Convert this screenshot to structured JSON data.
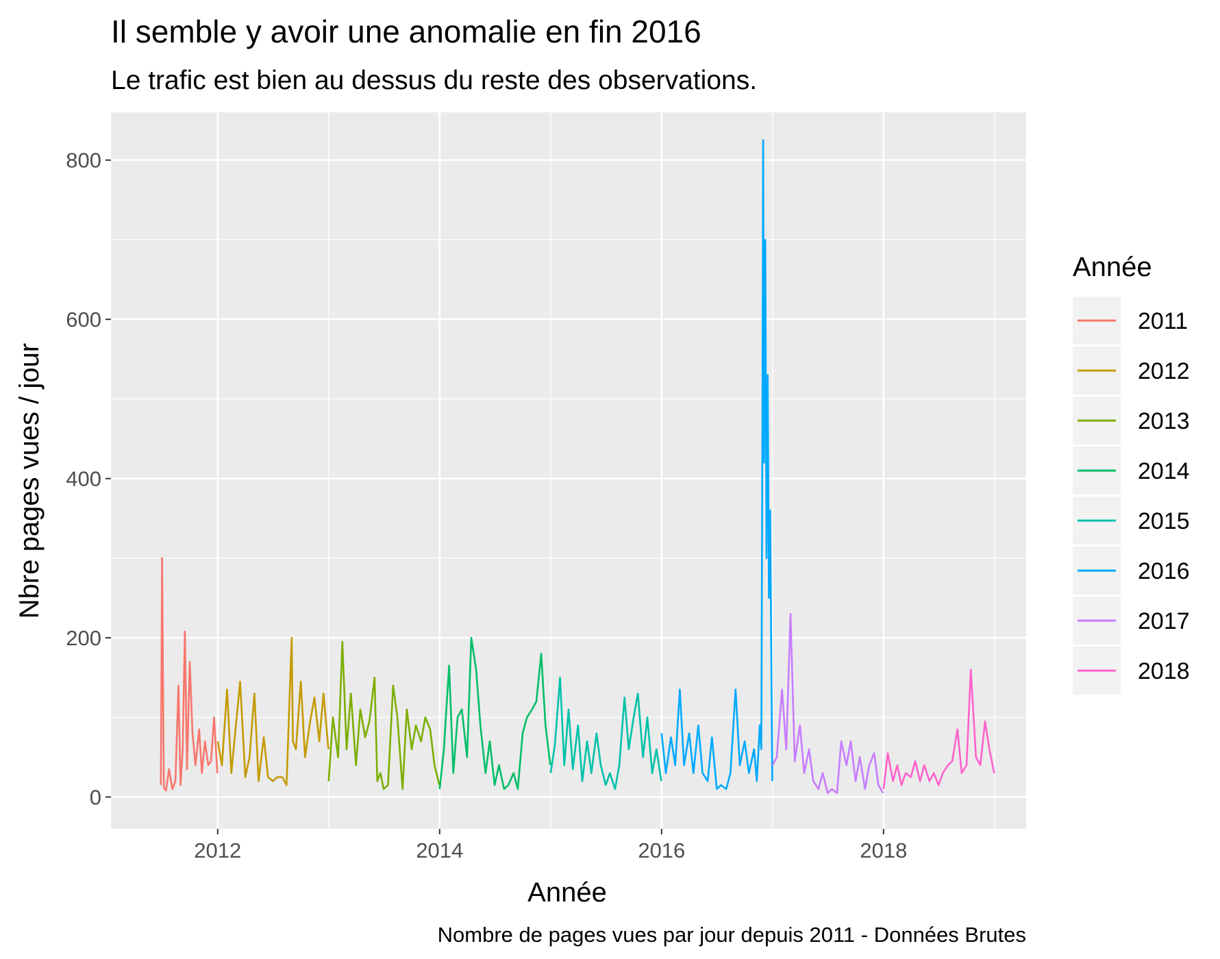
{
  "chart_data": {
    "type": "line",
    "title": "Il semble y avoir une anomalie en fin 2016",
    "subtitle": "Le trafic est bien au dessus du reste des observations.",
    "caption": "Nombre de pages vues par jour depuis 2011 - Données Brutes",
    "xlabel": "Année",
    "ylabel": "Nbre pages vues / jour",
    "xlim": [
      "2011-01-15",
      "2019-04-15"
    ],
    "ylim": [
      -40,
      860
    ],
    "x_ticks": [
      2012,
      2014,
      2016,
      2018
    ],
    "x_tick_labels": [
      "2012",
      "2014",
      "2016",
      "2018"
    ],
    "y_ticks": [
      0,
      200,
      400,
      600,
      800
    ],
    "y_tick_labels": [
      "0",
      "200",
      "400",
      "600",
      "800"
    ],
    "grid": true,
    "panel_background": "#EBEBEB",
    "legend": {
      "title": "Année",
      "position": "right",
      "entries": [
        "2011",
        "2012",
        "2013",
        "2014",
        "2015",
        "2016",
        "2017",
        "2018"
      ]
    },
    "series": [
      {
        "name": "2011",
        "color": "#F8766D",
        "x": [
          "2011-06-28",
          "2011-07-02",
          "2011-07-08",
          "2011-07-15",
          "2011-07-25",
          "2011-08-05",
          "2011-08-15",
          "2011-08-25",
          "2011-09-01",
          "2011-09-08",
          "2011-09-15",
          "2011-09-22",
          "2011-10-01",
          "2011-10-10",
          "2011-10-20",
          "2011-11-01",
          "2011-11-10",
          "2011-11-20",
          "2011-12-01",
          "2011-12-10",
          "2011-12-20",
          "2011-12-31"
        ],
        "y": [
          15,
          300,
          12,
          8,
          35,
          10,
          20,
          140,
          15,
          60,
          208,
          35,
          170,
          80,
          40,
          85,
          30,
          70,
          40,
          45,
          100,
          30
        ]
      },
      {
        "name": "2012",
        "color": "#C49A00",
        "x": [
          "2012-01-01",
          "2012-01-15",
          "2012-02-01",
          "2012-02-15",
          "2012-03-01",
          "2012-03-15",
          "2012-04-01",
          "2012-04-15",
          "2012-05-01",
          "2012-05-15",
          "2012-06-01",
          "2012-06-15",
          "2012-07-01",
          "2012-07-15",
          "2012-08-01",
          "2012-08-15",
          "2012-09-01",
          "2012-09-05",
          "2012-09-15",
          "2012-10-01",
          "2012-10-15",
          "2012-11-01",
          "2012-11-15",
          "2012-12-01",
          "2012-12-15",
          "2012-12-31"
        ],
        "y": [
          70,
          40,
          135,
          30,
          90,
          145,
          25,
          50,
          130,
          20,
          75,
          25,
          20,
          25,
          25,
          15,
          200,
          70,
          60,
          145,
          50,
          95,
          125,
          70,
          130,
          60
        ]
      },
      {
        "name": "2013",
        "color": "#7CAE00",
        "x": [
          "2013-01-01",
          "2013-01-15",
          "2013-02-01",
          "2013-02-15",
          "2013-03-01",
          "2013-03-15",
          "2013-04-01",
          "2013-04-15",
          "2013-05-01",
          "2013-05-15",
          "2013-06-01",
          "2013-06-10",
          "2013-06-20",
          "2013-07-01",
          "2013-07-15",
          "2013-08-01",
          "2013-08-15",
          "2013-09-01",
          "2013-09-15",
          "2013-10-01",
          "2013-10-15",
          "2013-11-01",
          "2013-11-15",
          "2013-12-01",
          "2013-12-15",
          "2013-12-31"
        ],
        "y": [
          20,
          100,
          50,
          195,
          60,
          130,
          40,
          110,
          75,
          95,
          150,
          20,
          30,
          10,
          15,
          140,
          100,
          10,
          110,
          60,
          90,
          70,
          100,
          85,
          40,
          15
        ]
      },
      {
        "name": "2014",
        "color": "#00BE67",
        "x": [
          "2014-01-01",
          "2014-01-15",
          "2014-02-01",
          "2014-02-15",
          "2014-03-01",
          "2014-03-15",
          "2014-04-01",
          "2014-04-15",
          "2014-05-01",
          "2014-05-15",
          "2014-06-01",
          "2014-06-15",
          "2014-07-01",
          "2014-07-15",
          "2014-08-01",
          "2014-08-15",
          "2014-09-01",
          "2014-09-15",
          "2014-10-01",
          "2014-10-15",
          "2014-11-01",
          "2014-11-15",
          "2014-12-01",
          "2014-12-15",
          "2014-12-31"
        ],
        "y": [
          10,
          60,
          165,
          30,
          100,
          110,
          50,
          200,
          160,
          90,
          30,
          70,
          15,
          40,
          10,
          15,
          30,
          10,
          80,
          100,
          110,
          120,
          180,
          90,
          40
        ]
      },
      {
        "name": "2015",
        "color": "#00C1A9",
        "x": [
          "2015-01-01",
          "2015-01-15",
          "2015-02-01",
          "2015-02-15",
          "2015-03-01",
          "2015-03-15",
          "2015-04-01",
          "2015-04-15",
          "2015-05-01",
          "2015-05-15",
          "2015-06-01",
          "2015-06-15",
          "2015-07-01",
          "2015-07-15",
          "2015-08-01",
          "2015-08-15",
          "2015-09-01",
          "2015-09-15",
          "2015-10-01",
          "2015-10-15",
          "2015-11-01",
          "2015-11-15",
          "2015-12-01",
          "2015-12-15",
          "2015-12-31"
        ],
        "y": [
          30,
          65,
          150,
          40,
          110,
          35,
          90,
          20,
          70,
          30,
          80,
          40,
          15,
          30,
          10,
          40,
          125,
          60,
          100,
          130,
          50,
          100,
          30,
          60,
          20
        ]
      },
      {
        "name": "2016",
        "color": "#00A9FF",
        "x": [
          "2016-01-01",
          "2016-01-15",
          "2016-02-01",
          "2016-02-15",
          "2016-03-01",
          "2016-03-15",
          "2016-04-01",
          "2016-04-15",
          "2016-05-01",
          "2016-05-15",
          "2016-06-01",
          "2016-06-15",
          "2016-07-01",
          "2016-07-15",
          "2016-08-01",
          "2016-08-15",
          "2016-09-01",
          "2016-09-15",
          "2016-10-01",
          "2016-10-15",
          "2016-11-01",
          "2016-11-10",
          "2016-11-20",
          "2016-11-25",
          "2016-11-28",
          "2016-12-01",
          "2016-12-04",
          "2016-12-08",
          "2016-12-12",
          "2016-12-16",
          "2016-12-20",
          "2016-12-24",
          "2016-12-31"
        ],
        "y": [
          80,
          30,
          75,
          40,
          135,
          40,
          80,
          30,
          90,
          30,
          20,
          75,
          10,
          15,
          10,
          30,
          135,
          40,
          70,
          30,
          60,
          20,
          90,
          60,
          410,
          825,
          420,
          700,
          300,
          530,
          250,
          360,
          20
        ]
      },
      {
        "name": "2017",
        "color": "#C77CFF",
        "x": [
          "2017-01-01",
          "2017-01-15",
          "2017-02-01",
          "2017-02-15",
          "2017-03-01",
          "2017-03-15",
          "2017-04-01",
          "2017-04-15",
          "2017-05-01",
          "2017-05-15",
          "2017-06-01",
          "2017-06-15",
          "2017-07-01",
          "2017-07-15",
          "2017-08-01",
          "2017-08-15",
          "2017-09-01",
          "2017-09-15",
          "2017-10-01",
          "2017-10-15",
          "2017-11-01",
          "2017-11-15",
          "2017-12-01",
          "2017-12-15",
          "2017-12-31"
        ],
        "y": [
          40,
          50,
          135,
          60,
          230,
          45,
          90,
          30,
          60,
          20,
          10,
          30,
          5,
          10,
          5,
          70,
          40,
          70,
          20,
          50,
          10,
          40,
          55,
          15,
          5
        ]
      },
      {
        "name": "2018",
        "color": "#FF61CC",
        "x": [
          "2018-01-01",
          "2018-01-15",
          "2018-02-01",
          "2018-02-15",
          "2018-03-01",
          "2018-03-15",
          "2018-04-01",
          "2018-04-15",
          "2018-05-01",
          "2018-05-15",
          "2018-06-01",
          "2018-06-15",
          "2018-07-01",
          "2018-07-15",
          "2018-08-01",
          "2018-08-15",
          "2018-09-01",
          "2018-09-15",
          "2018-10-01",
          "2018-10-15",
          "2018-11-01",
          "2018-11-15",
          "2018-12-01",
          "2018-12-15",
          "2018-12-31"
        ],
        "y": [
          10,
          55,
          20,
          40,
          15,
          30,
          25,
          45,
          20,
          40,
          20,
          30,
          15,
          30,
          40,
          45,
          85,
          30,
          40,
          160,
          50,
          40,
          95,
          60,
          30
        ]
      }
    ]
  }
}
